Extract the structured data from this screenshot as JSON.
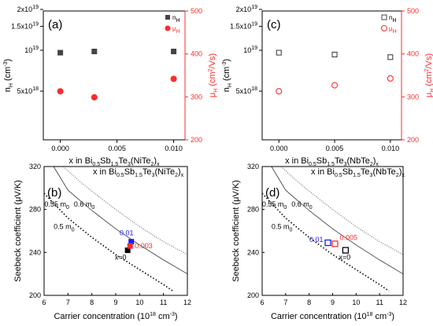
{
  "chart_data": [
    {
      "type": "scatter",
      "panel_label": "(a)",
      "x_label_parts": [
        "x in Bi",
        "0.5",
        "Sb",
        "1.5",
        "Te",
        "3",
        "(NiTe",
        "2",
        ")",
        "x"
      ],
      "x_ticks": [
        "0.000",
        "0.005",
        "0.010"
      ],
      "xlim": [
        -0.0015,
        0.011
      ],
      "y_left_label": "nH (cm-3)",
      "y_left_ticks": [
        "5x10^18",
        "10^19",
        "1.5x10^19",
        "2x10^19"
      ],
      "y_right_label": "μH (cm2/Vs)",
      "y_right_ticks": [
        "200",
        "300",
        "400",
        "500"
      ],
      "y_right_lim": [
        200,
        500
      ],
      "legend": [
        "nH",
        "μH"
      ],
      "series": [
        {
          "name": "nH",
          "axis": "left",
          "marker": "filled-square",
          "color": "#444444",
          "x": [
            0,
            0.003,
            0.01
          ],
          "y": [
            9.6e+18,
            9.8e+18,
            9.8e+18
          ]
        },
        {
          "name": "μH",
          "axis": "right",
          "marker": "filled-circle",
          "color": "#ff2b2b",
          "x": [
            0,
            0.003,
            0.01
          ],
          "y": [
            313,
            299,
            342
          ]
        }
      ]
    },
    {
      "type": "scatter",
      "panel_label": "(c)",
      "x_label_parts": [
        "x in Bi",
        "0.5",
        "Sb",
        "1.5",
        "Te",
        "3",
        "(NbTe",
        "2",
        ")",
        "x"
      ],
      "x_ticks": [
        "0.000",
        "0.005",
        "0.010"
      ],
      "xlim": [
        -0.0015,
        0.011
      ],
      "y_left_label": "nH (cm-3)",
      "y_left_ticks": [
        "5x10^18",
        "10^19",
        "1.5x10^19",
        "2x10^19"
      ],
      "y_right_label": "μH (cm2/Vs)",
      "y_right_ticks": [
        "200",
        "300",
        "400",
        "500"
      ],
      "y_right_lim": [
        200,
        500
      ],
      "legend": [
        "nH",
        "μH"
      ],
      "series": [
        {
          "name": "nH",
          "axis": "left",
          "marker": "open-square",
          "color": "#444444",
          "x": [
            0,
            0.005,
            0.01
          ],
          "y": [
            9.6e+18,
            9.3e+18,
            8.9e+18
          ]
        },
        {
          "name": "μH",
          "axis": "right",
          "marker": "open-circle",
          "color": "#ff2b2b",
          "x": [
            0,
            0.005,
            0.01
          ],
          "y": [
            313,
            327,
            343
          ]
        }
      ]
    },
    {
      "type": "scatter",
      "panel_label": "(b)",
      "title_parts": [
        "x in Bi",
        "0.5",
        "Sb",
        "1.5",
        "Te",
        "3",
        "(NiTe",
        "2",
        ")",
        "x"
      ],
      "x_label": "Carrier concentration (10^18 cm^-3)",
      "x_ticks": [
        "6",
        "7",
        "8",
        "9",
        "10",
        "11",
        "12"
      ],
      "xlim": [
        6,
        12
      ],
      "y_label": "Seebeck coefficient (μV/K)",
      "y_ticks": [
        "200",
        "240",
        "280",
        "320"
      ],
      "ylim": [
        200,
        320
      ],
      "curves": [
        {
          "name": "0.5 m0",
          "x": [
            6,
            7,
            8,
            9,
            10,
            11,
            11.4
          ],
          "y": [
            295,
            272,
            254,
            238,
            224,
            210,
            204
          ]
        },
        {
          "name": "0.55 m0",
          "x": [
            6.4,
            7,
            8,
            9,
            10,
            11,
            12
          ],
          "y": [
            320,
            298,
            279,
            262,
            247,
            233,
            220
          ]
        },
        {
          "name": "0.6 m0",
          "x": [
            6.8,
            7.5,
            8,
            9,
            10,
            11,
            12
          ],
          "y": [
            320,
            306,
            297,
            280,
            264,
            250,
            238
          ]
        }
      ],
      "points": [
        {
          "label": "x=0",
          "x": 9.5,
          "y": 242,
          "color": "#000000",
          "marker": "filled-square"
        },
        {
          "label": "0.01",
          "x": 9.65,
          "y": 250,
          "color": "#1a1aff",
          "marker": "filled-square"
        },
        {
          "label": "0.003",
          "x": 9.6,
          "y": 246,
          "color": "#ff2b2b",
          "marker": "filled-square"
        }
      ]
    },
    {
      "type": "scatter",
      "panel_label": "(d)",
      "title_parts": [
        "x in Bi",
        "0.5",
        "Sb",
        "1.5",
        "Te",
        "3",
        "(NbTe",
        "2",
        ")",
        "x"
      ],
      "x_label": "Carrier concentration (10^18 cm^-3)",
      "x_ticks": [
        "6",
        "7",
        "8",
        "9",
        "10",
        "11",
        "12"
      ],
      "xlim": [
        6,
        12
      ],
      "y_label": "Seebeck coefficient (μV/K)",
      "y_ticks": [
        "200",
        "240",
        "280",
        "320"
      ],
      "ylim": [
        200,
        320
      ],
      "curves": [
        {
          "name": "0.5 m0",
          "x": [
            6,
            7,
            8,
            9,
            10,
            11,
            11.4
          ],
          "y": [
            295,
            272,
            254,
            238,
            224,
            210,
            204
          ]
        },
        {
          "name": "0.55 m0",
          "x": [
            6.4,
            7,
            8,
            9,
            10,
            11,
            12
          ],
          "y": [
            320,
            298,
            279,
            262,
            247,
            233,
            220
          ]
        },
        {
          "name": "0.6 m0",
          "x": [
            6.8,
            7.5,
            8,
            9,
            10,
            11,
            12
          ],
          "y": [
            320,
            306,
            297,
            280,
            264,
            250,
            238
          ]
        }
      ],
      "points": [
        {
          "label": "x=0",
          "x": 9.55,
          "y": 242,
          "color": "#000000",
          "marker": "open-square"
        },
        {
          "label": "0.01",
          "x": 8.8,
          "y": 249,
          "color": "#1a1aff",
          "marker": "open-square"
        },
        {
          "label": "0.005",
          "x": 9.1,
          "y": 248,
          "color": "#ff2b2b",
          "marker": "open-square"
        }
      ]
    }
  ]
}
